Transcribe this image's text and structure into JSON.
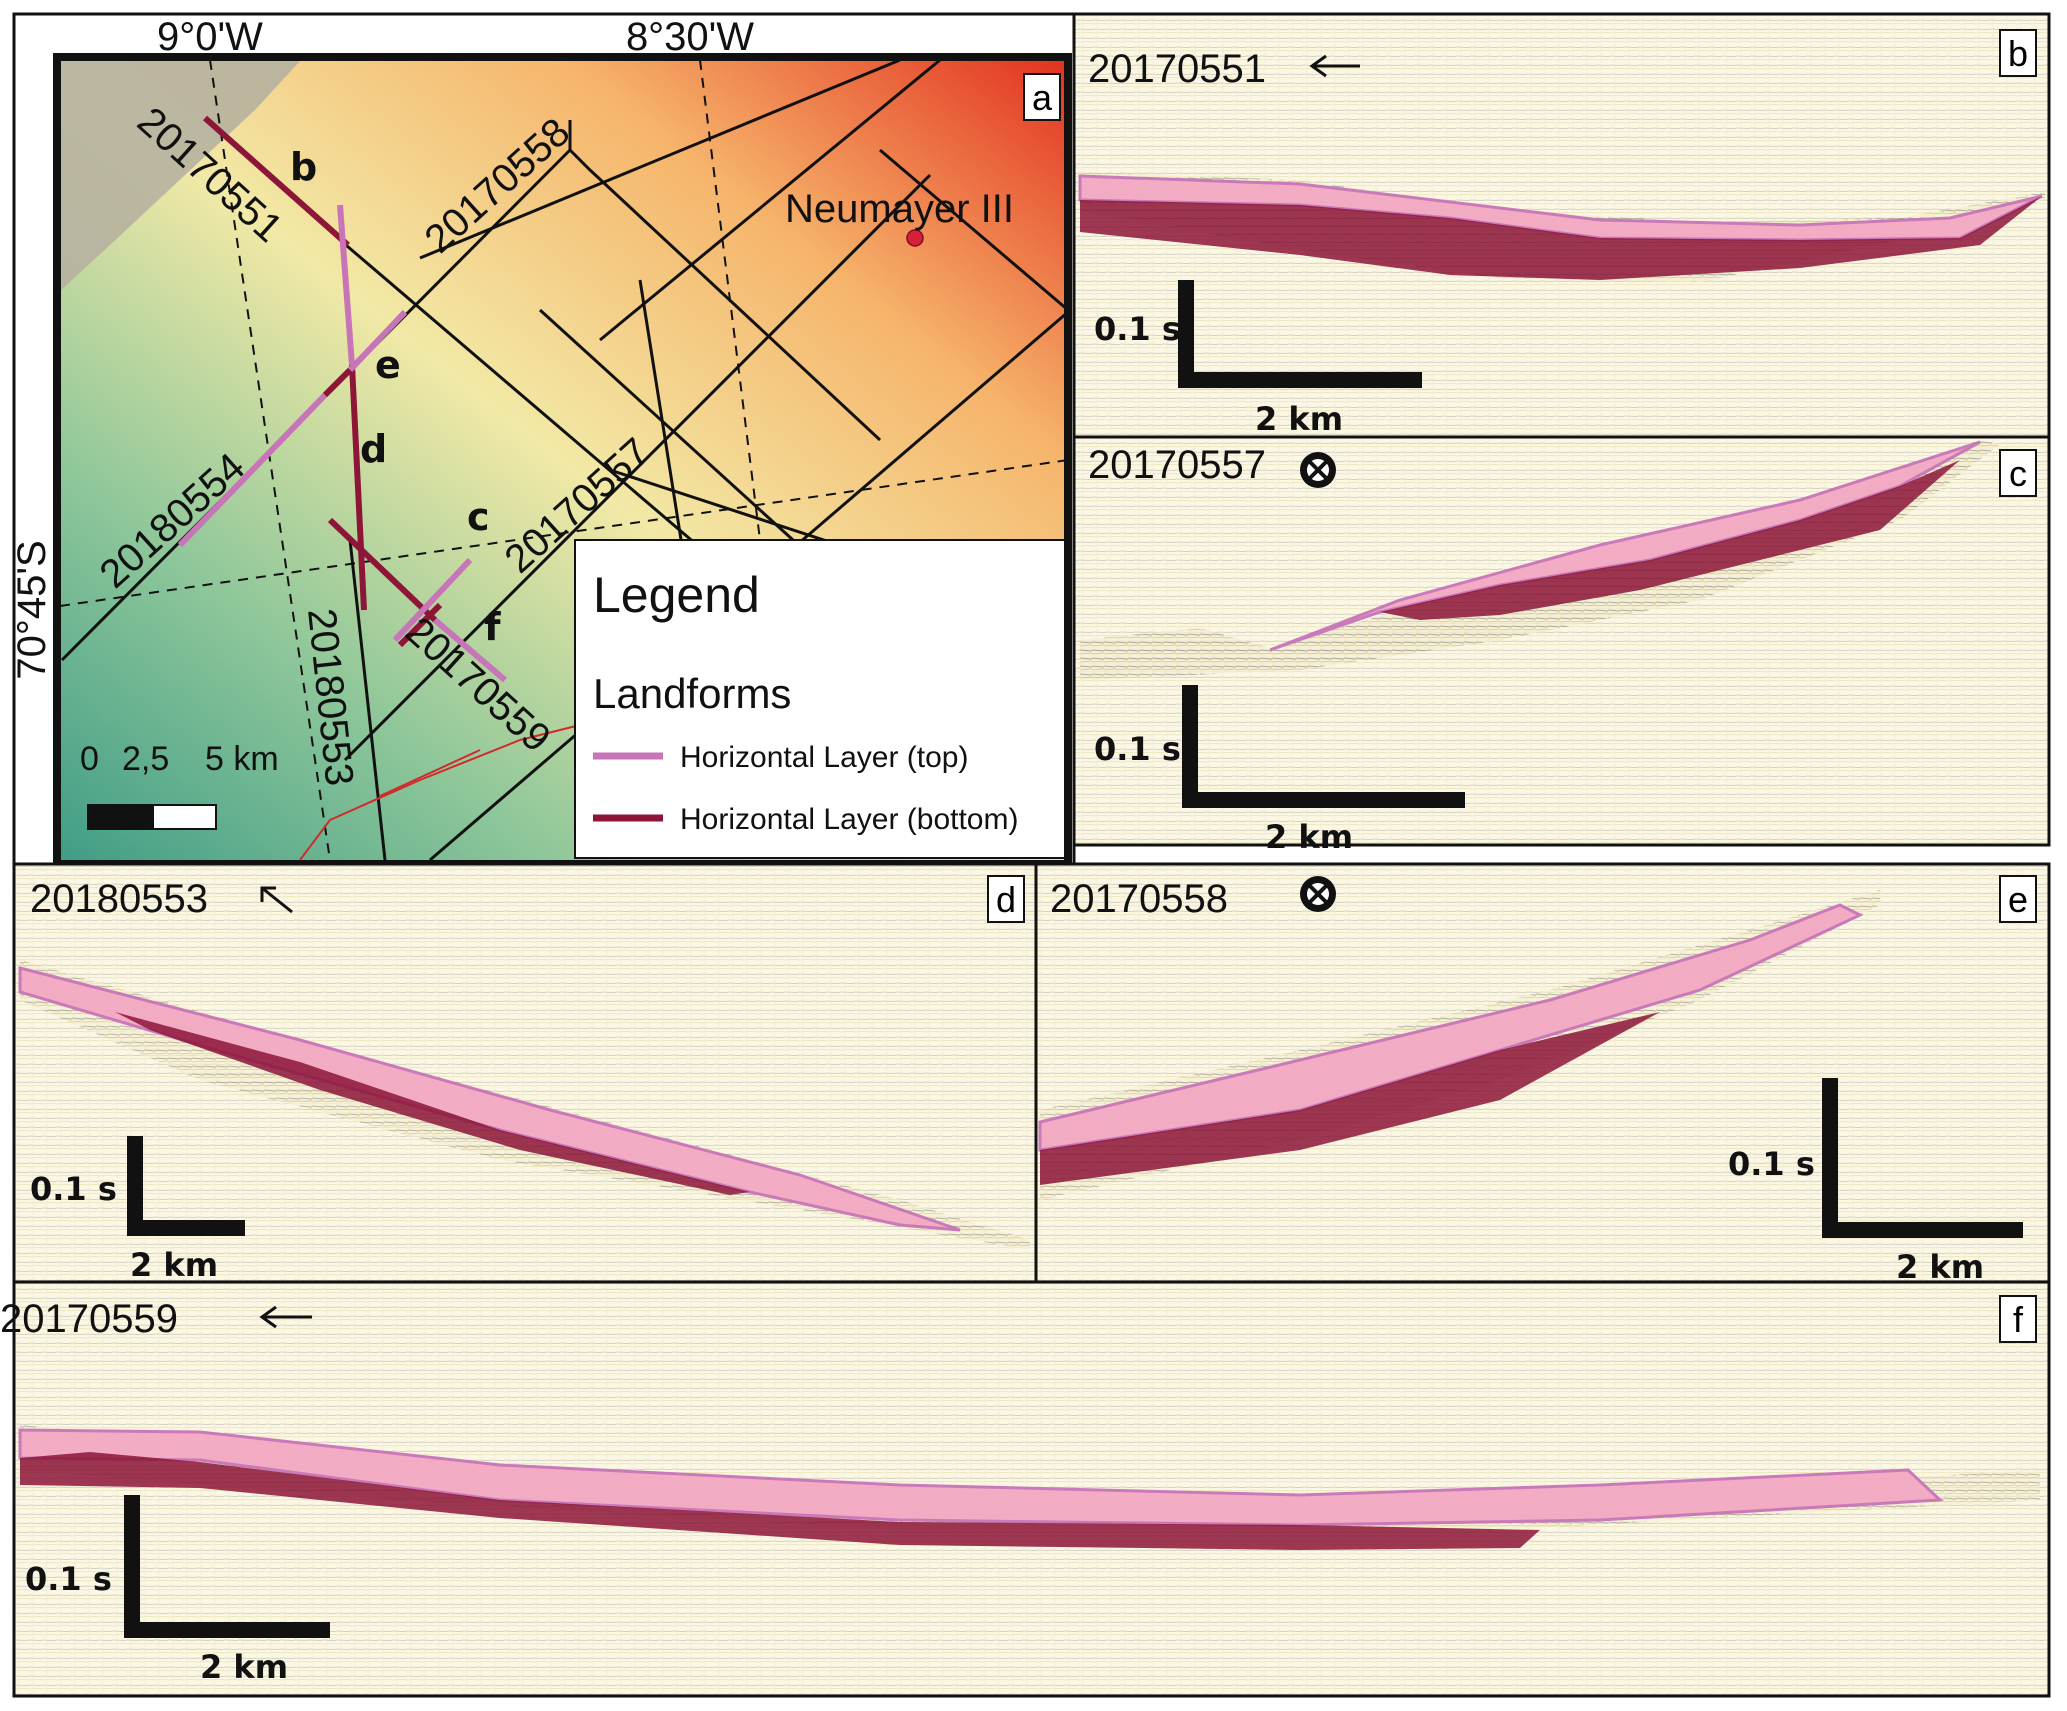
{
  "map": {
    "panel_letter": "a",
    "lon_labels": [
      "9°0'W",
      "8°30'W"
    ],
    "lat_label": "70°45'S",
    "station": "Neumayer III",
    "profile_labels": [
      "20170551",
      "20170558",
      "20180554",
      "20170557",
      "20180553",
      "20170559"
    ],
    "segment_letters": [
      "b",
      "e",
      "d",
      "c",
      "f"
    ],
    "scalebar": {
      "ticks": [
        "0",
        "2,5",
        "5 km"
      ]
    },
    "legend": {
      "title": "Legend",
      "subtitle": "Landforms",
      "items": [
        {
          "label": "Horizontal Layer (top)",
          "color": "#c874b8"
        },
        {
          "label": "Horizontal Layer (bottom)",
          "color": "#8c1538"
        }
      ]
    }
  },
  "profiles": {
    "b": {
      "letter": "b",
      "name": "20170551",
      "direction_icon": "arrow-left-icon",
      "scale_time": "0.1 s",
      "scale_distance": "2 km"
    },
    "c": {
      "letter": "c",
      "name": "20170557",
      "direction_icon": "into-page-icon",
      "scale_time": "0.1 s",
      "scale_distance": "2 km"
    },
    "d": {
      "letter": "d",
      "name": "20180553",
      "direction_icon": "arrow-upleft-icon",
      "scale_time": "0.1 s",
      "scale_distance": "2 km"
    },
    "e": {
      "letter": "e",
      "name": "20170558",
      "direction_icon": "into-page-icon",
      "scale_time": "0.1 s",
      "scale_distance": "2 km"
    },
    "f": {
      "letter": "f",
      "name": "20170559",
      "direction_icon": "arrow-left-icon",
      "scale_time": "0.1 s",
      "scale_distance": "2 km"
    }
  },
  "colors": {
    "layer_top": "#c874b8",
    "layer_bottom": "#8c1538",
    "layer_top_fill": "#f3a9c3",
    "layer_bottom_fill": "#8c1538",
    "station_dot": "#d8203a"
  }
}
